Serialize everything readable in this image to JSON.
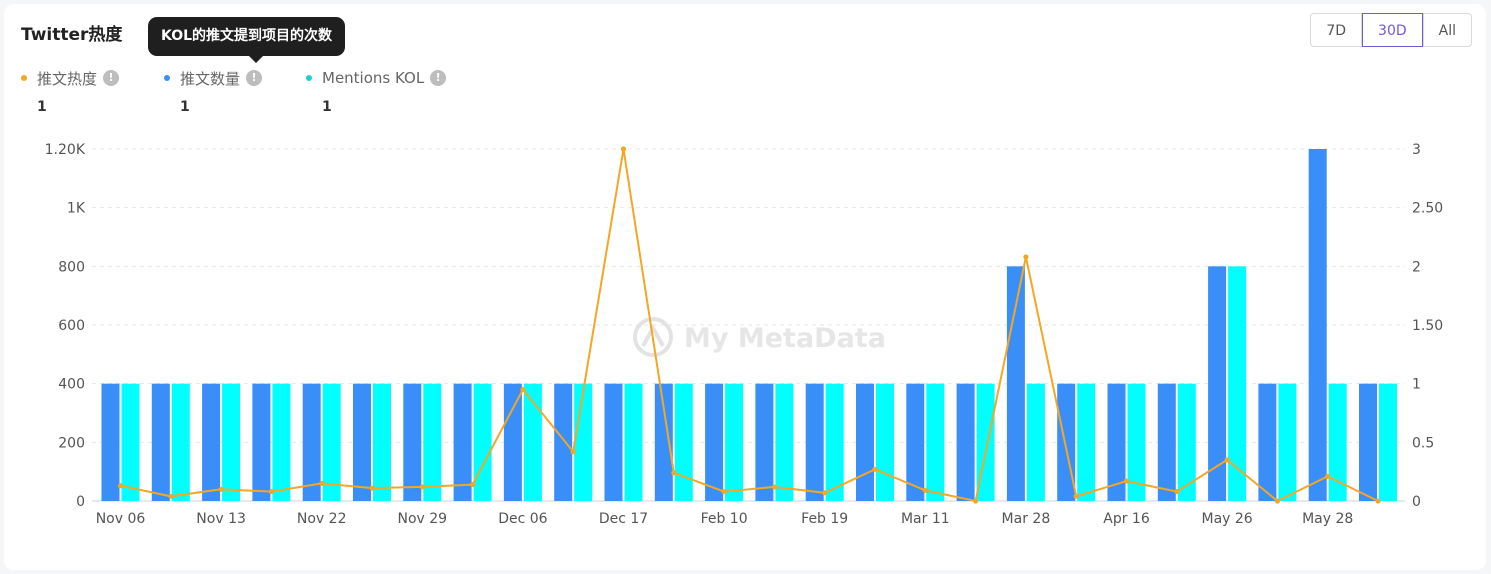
{
  "header": {
    "title": "Twitter热度"
  },
  "tooltip": {
    "text": "KOL的推文提到项目的次数"
  },
  "range_buttons": [
    "7D",
    "30D",
    "All"
  ],
  "range_selected": "30D",
  "legend": [
    {
      "label": "推文热度",
      "value": "1",
      "color": "#f5a623",
      "icon": "info-icon"
    },
    {
      "label": "推文数量",
      "value": "1",
      "color": "#3a8ef7",
      "icon": "info-icon"
    },
    {
      "label": "Mentions KOL",
      "value": "1",
      "color": "#1fcfcf",
      "icon": "info-icon"
    }
  ],
  "watermark": "My MetaData",
  "chart_data": {
    "type": "bar",
    "left_axis": {
      "ticks": [
        "0",
        "200",
        "400",
        "600",
        "800",
        "1K",
        "1.20K"
      ],
      "range": [
        0,
        1200
      ]
    },
    "right_axis": {
      "ticks": [
        "0",
        "0.5",
        "1",
        "1.50",
        "2",
        "2.50",
        "3"
      ],
      "range": [
        0,
        3
      ]
    },
    "x_tick_labels": [
      "Nov 06",
      "Nov 13",
      "Nov 22",
      "Nov 29",
      "Dec 06",
      "Dec 17",
      "Feb 10",
      "Feb 19",
      "Mar 11",
      "Mar 28",
      "Apr 16",
      "May 26",
      "May 28"
    ],
    "bar_count": 26,
    "series": [
      {
        "name": "推文数量",
        "kind": "bar",
        "axis": "left",
        "color": "#3a8ef7",
        "values": [
          400,
          400,
          400,
          400,
          400,
          400,
          400,
          400,
          400,
          400,
          400,
          400,
          400,
          400,
          400,
          400,
          400,
          400,
          800,
          400,
          400,
          400,
          800,
          400,
          1200,
          400
        ]
      },
      {
        "name": "Mentions KOL",
        "kind": "bar",
        "axis": "left",
        "color": "#00ffff",
        "values": [
          400,
          400,
          400,
          400,
          400,
          400,
          400,
          400,
          400,
          400,
          400,
          400,
          400,
          400,
          400,
          400,
          400,
          400,
          400,
          400,
          400,
          400,
          800,
          400,
          400,
          400
        ]
      },
      {
        "name": "推文热度",
        "kind": "line",
        "axis": "right",
        "color": "#f5a623",
        "values": [
          0.13,
          0.04,
          0.1,
          0.08,
          0.15,
          0.11,
          0.12,
          0.14,
          0.95,
          0.42,
          3.0,
          0.24,
          0.08,
          0.12,
          0.07,
          0.27,
          0.09,
          0.0,
          2.08,
          0.04,
          0.17,
          0.08,
          0.35,
          0.0,
          0.21,
          0.0
        ]
      }
    ]
  }
}
